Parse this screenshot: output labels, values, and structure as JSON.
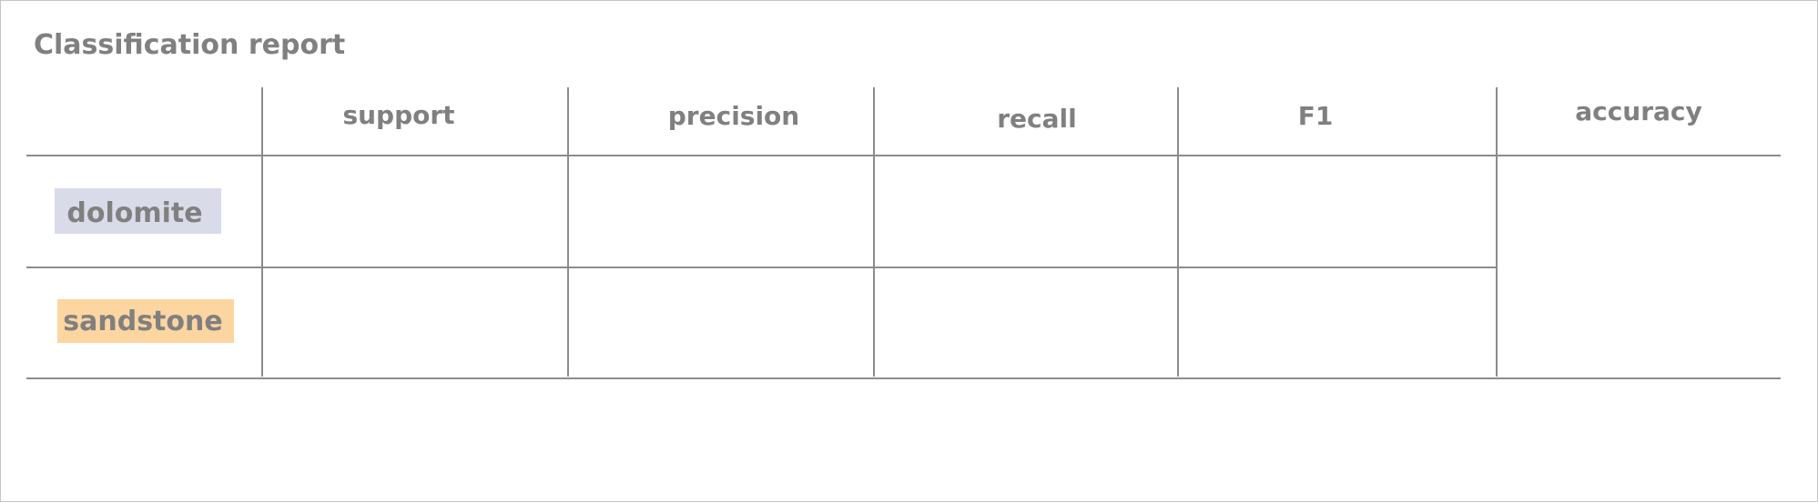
{
  "report": {
    "title": "Classification report",
    "columns": [
      "support",
      "precision",
      "recall",
      "F1",
      "accuracy"
    ],
    "rows": [
      {
        "label": "dolomite",
        "color": "#d9dbe9"
      },
      {
        "label": "sandstone",
        "color": "#fcd5a0"
      }
    ],
    "line_color": "#8c8c8c",
    "text_color": "#808080"
  }
}
